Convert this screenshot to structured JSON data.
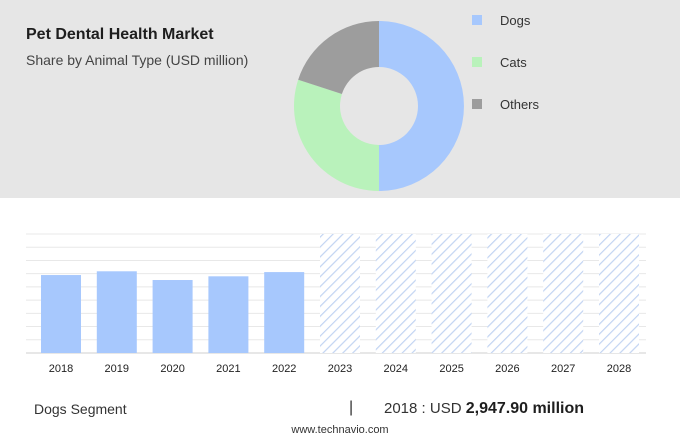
{
  "header": {
    "title": "Pet Dental Health Market",
    "subtitle": "Share by Animal Type (USD million)"
  },
  "colors": {
    "dogs": "#a7c8fd",
    "cats": "#b9f2bb",
    "others": "#9d9d9d",
    "forecast_hatch": "#c2d4f2"
  },
  "chart_data": [
    {
      "type": "pie",
      "style": "donut",
      "labels": [
        "Dogs",
        "Cats",
        "Others"
      ],
      "values": [
        50,
        30,
        20
      ],
      "legend_position": "right"
    },
    {
      "type": "bar",
      "categories": [
        "2018",
        "2019",
        "2020",
        "2021",
        "2022",
        "2023",
        "2024",
        "2025",
        "2026",
        "2027",
        "2028"
      ],
      "series": [
        {
          "name": "Dogs",
          "values": [
            2947.9,
            3090,
            2760,
            2900,
            3060,
            null,
            null,
            null,
            null,
            null,
            null
          ]
        }
      ],
      "forecast_categories": [
        "2023",
        "2024",
        "2025",
        "2026",
        "2027",
        "2028"
      ],
      "ylim": [
        0,
        4500
      ],
      "grid": true,
      "y_tick_labels": false
    }
  ],
  "footer": {
    "segment_label": "Dogs Segment",
    "separator": "|",
    "year_prefix": "2018 : USD ",
    "value": "2,947.90 million",
    "source": "www.technavio.com"
  }
}
